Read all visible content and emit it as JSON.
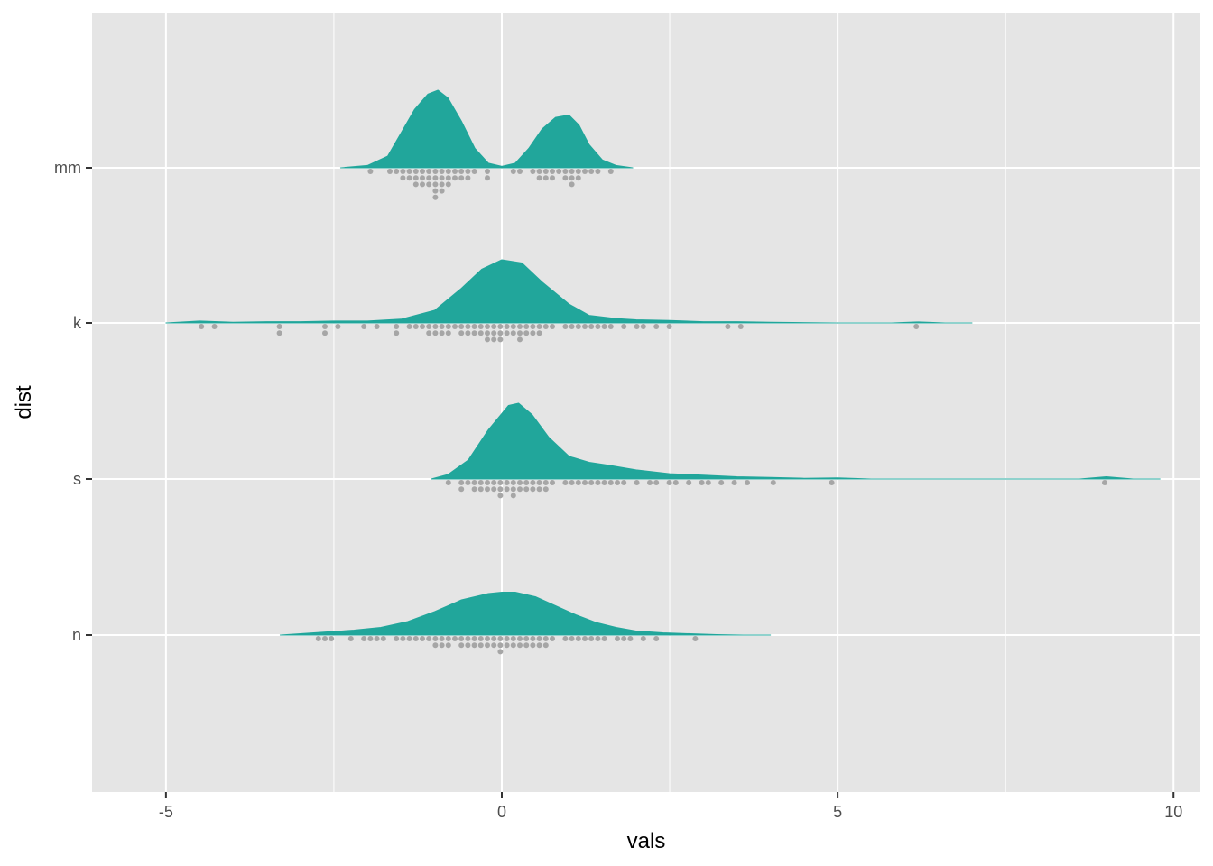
{
  "chart_data": {
    "type": "raincloud",
    "title": "",
    "xlabel": "vals",
    "ylabel": "dist",
    "xlim": [
      -6.1,
      10.4
    ],
    "x_ticks": [
      -5,
      0,
      5,
      10
    ],
    "x_tick_labels": [
      "-5",
      "0",
      "5",
      "10"
    ],
    "categories": [
      "n",
      "s",
      "k",
      "mm"
    ],
    "grid": true,
    "legend": "none",
    "colors": {
      "panel": "#e5e5e5",
      "grid": "#ffffff",
      "density": "#21a69b",
      "points": "#a6a6a6"
    },
    "series": [
      {
        "name": "mm",
        "density": {
          "x": [
            -2.4,
            -2.0,
            -1.7,
            -1.5,
            -1.3,
            -1.1,
            -0.95,
            -0.8,
            -0.6,
            -0.4,
            -0.2,
            0.0,
            0.2,
            0.4,
            0.6,
            0.8,
            1.0,
            1.15,
            1.3,
            1.5,
            1.7,
            1.95
          ],
          "y": [
            0.0,
            0.03,
            0.15,
            0.45,
            0.75,
            0.95,
            1.0,
            0.9,
            0.6,
            0.25,
            0.06,
            0.02,
            0.06,
            0.25,
            0.5,
            0.65,
            0.68,
            0.55,
            0.3,
            0.1,
            0.03,
            0.0
          ]
        },
        "points": [
          -2.0,
          -1.7,
          -1.55,
          -1.5,
          -1.45,
          -1.4,
          -1.35,
          -1.3,
          -1.3,
          -1.25,
          -1.2,
          -1.2,
          -1.15,
          -1.1,
          -1.1,
          -1.05,
          -1.0,
          -1.0,
          -1.0,
          -0.95,
          -0.95,
          -0.9,
          -0.9,
          -0.85,
          -0.85,
          -0.8,
          -0.8,
          -0.75,
          -0.7,
          -0.7,
          -0.65,
          -0.6,
          -0.55,
          -0.5,
          -0.4,
          -0.2,
          -0.2,
          0.2,
          0.3,
          0.5,
          0.55,
          0.6,
          0.65,
          0.7,
          0.75,
          0.8,
          0.85,
          0.9,
          0.95,
          1.0,
          1.0,
          1.05,
          1.1,
          1.15,
          1.2,
          1.3,
          1.4,
          1.6
        ]
      },
      {
        "name": "k",
        "density": {
          "x": [
            -5.0,
            -4.5,
            -4.0,
            -3.5,
            -3.0,
            -2.5,
            -2.0,
            -1.5,
            -1.0,
            -0.6,
            -0.3,
            0.0,
            0.3,
            0.6,
            1.0,
            1.3,
            1.7,
            2.0,
            2.5,
            3.0,
            3.5,
            4.0,
            5.0,
            5.8,
            6.2,
            6.6,
            7.0
          ],
          "y": [
            0.0,
            0.03,
            0.01,
            0.02,
            0.02,
            0.03,
            0.03,
            0.06,
            0.2,
            0.55,
            0.85,
            1.0,
            0.95,
            0.65,
            0.3,
            0.12,
            0.07,
            0.05,
            0.04,
            0.02,
            0.02,
            0.01,
            0.0,
            0.0,
            0.015,
            0.0,
            0.0
          ]
        },
        "points": [
          -4.5,
          -4.3,
          -3.3,
          -3.3,
          -2.6,
          -2.6,
          -2.4,
          -2.1,
          -1.9,
          -1.6,
          -1.6,
          -1.4,
          -1.3,
          -1.2,
          -1.1,
          -1.05,
          -1.0,
          -0.95,
          -0.9,
          -0.85,
          -0.8,
          -0.75,
          -0.7,
          -0.65,
          -0.6,
          -0.55,
          -0.5,
          -0.45,
          -0.4,
          -0.35,
          -0.3,
          -0.25,
          -0.2,
          -0.2,
          -0.15,
          -0.1,
          -0.1,
          -0.05,
          0.0,
          0.0,
          0.05,
          0.1,
          0.15,
          0.2,
          0.25,
          0.3,
          0.3,
          0.35,
          0.4,
          0.45,
          0.5,
          0.55,
          0.6,
          0.7,
          0.8,
          0.9,
          1.0,
          1.1,
          1.2,
          1.3,
          1.4,
          1.5,
          1.6,
          1.8,
          2.0,
          2.1,
          2.3,
          2.5,
          3.4,
          3.6,
          6.2
        ]
      },
      {
        "name": "s",
        "density": {
          "x": [
            -1.05,
            -0.8,
            -0.5,
            -0.2,
            0.1,
            0.25,
            0.45,
            0.7,
            1.0,
            1.3,
            1.6,
            2.0,
            2.5,
            3.0,
            3.5,
            4.0,
            4.5,
            5.0,
            5.5,
            6.0,
            7.0,
            8.0,
            8.6,
            9.0,
            9.4,
            9.8
          ],
          "y": [
            0.0,
            0.06,
            0.25,
            0.65,
            0.97,
            1.0,
            0.85,
            0.55,
            0.3,
            0.22,
            0.18,
            0.12,
            0.07,
            0.05,
            0.03,
            0.02,
            0.01,
            0.015,
            0.0,
            0.0,
            0.0,
            0.0,
            0.0,
            0.03,
            0.0,
            0.0
          ]
        },
        "points": [
          -0.8,
          -0.6,
          -0.6,
          -0.5,
          -0.45,
          -0.4,
          -0.35,
          -0.3,
          -0.25,
          -0.2,
          -0.15,
          -0.1,
          -0.05,
          0.0,
          0.0,
          0.05,
          0.1,
          0.15,
          0.2,
          0.2,
          0.25,
          0.3,
          0.35,
          0.4,
          0.45,
          0.5,
          0.55,
          0.6,
          0.65,
          0.7,
          0.8,
          0.9,
          1.0,
          1.1,
          1.2,
          1.3,
          1.4,
          1.5,
          1.6,
          1.7,
          1.8,
          2.0,
          2.2,
          2.3,
          2.5,
          2.6,
          2.8,
          3.0,
          3.1,
          3.3,
          3.5,
          3.7,
          4.0,
          4.9,
          9.0
        ]
      },
      {
        "name": "n",
        "density": {
          "x": [
            -3.3,
            -3.0,
            -2.6,
            -2.2,
            -1.8,
            -1.4,
            -1.0,
            -0.6,
            -0.2,
            0.0,
            0.2,
            0.5,
            0.8,
            1.1,
            1.4,
            1.7,
            2.0,
            2.4,
            2.8,
            3.2,
            3.6,
            4.0
          ],
          "y": [
            0.0,
            0.03,
            0.07,
            0.11,
            0.17,
            0.3,
            0.52,
            0.78,
            0.92,
            0.95,
            0.95,
            0.85,
            0.65,
            0.45,
            0.28,
            0.17,
            0.09,
            0.05,
            0.03,
            0.01,
            0.0,
            0.0
          ]
        },
        "points": [
          -2.7,
          -2.6,
          -2.5,
          -2.2,
          -2.1,
          -2.0,
          -1.9,
          -1.8,
          -1.6,
          -1.5,
          -1.4,
          -1.3,
          -1.2,
          -1.1,
          -1.0,
          -0.95,
          -0.9,
          -0.85,
          -0.8,
          -0.75,
          -0.7,
          -0.65,
          -0.6,
          -0.55,
          -0.5,
          -0.45,
          -0.4,
          -0.35,
          -0.3,
          -0.25,
          -0.2,
          -0.15,
          -0.1,
          -0.05,
          0.0,
          0.0,
          0.05,
          0.1,
          0.15,
          0.2,
          0.25,
          0.3,
          0.35,
          0.4,
          0.45,
          0.5,
          0.55,
          0.6,
          0.65,
          0.7,
          0.8,
          0.9,
          1.0,
          1.1,
          1.2,
          1.3,
          1.4,
          1.5,
          1.7,
          1.8,
          1.9,
          2.1,
          2.3,
          2.9
        ]
      }
    ]
  }
}
